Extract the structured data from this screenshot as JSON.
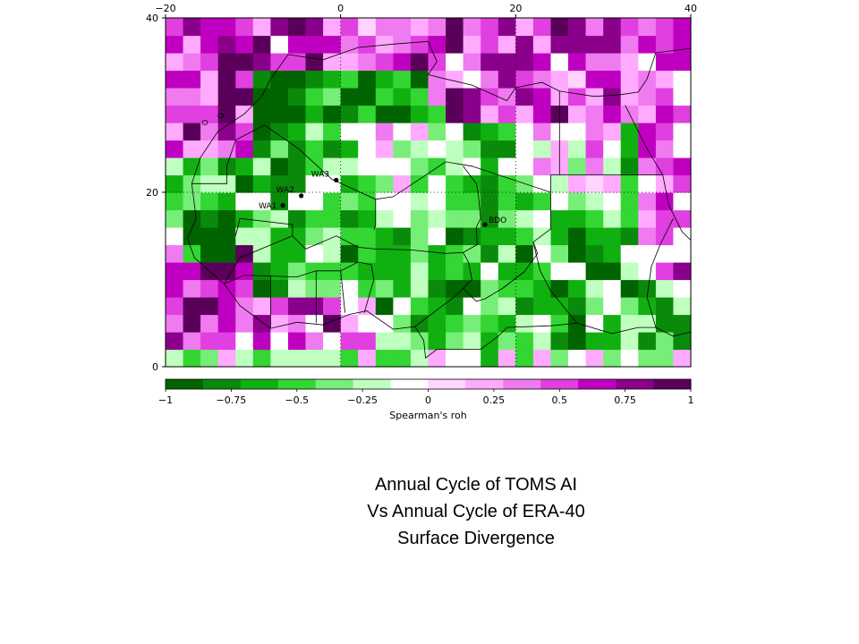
{
  "map": {
    "lon_ticks": [
      "−20",
      "0",
      "20",
      "40"
    ],
    "lat_ticks": [
      "0",
      "20",
      "40"
    ],
    "stations": [
      {
        "label": "WA1",
        "lon": -6.6,
        "lat": 18.5
      },
      {
        "label": "WA2",
        "lon": -4.5,
        "lat": 19.6
      },
      {
        "label": "WA3",
        "lon": -0.5,
        "lat": 21.4
      },
      {
        "label": "BDO",
        "lon": 16.5,
        "lat": 16.3
      }
    ],
    "extent": {
      "lon_min": -20,
      "lon_max": 40,
      "lat_min": 0,
      "lat_max": 40
    }
  },
  "colorbar": {
    "title": "Spearman's roh",
    "tick_labels": [
      "−1",
      "−0.75",
      "−0.5",
      "−0.25",
      "0",
      "0.25",
      "0.5",
      "0.75",
      "1"
    ],
    "range": [
      -1,
      1
    ],
    "colors": [
      "#006400",
      "#0a8a0a",
      "#11b011",
      "#33d633",
      "#77ee77",
      "#bfffbf",
      "#ffffff",
      "#ffd5ff",
      "#ffaaff",
      "#f07af0",
      "#e040e0",
      "#c000c0",
      "#8a008a",
      "#5a005a"
    ]
  },
  "caption": {
    "line1": "Annual Cycle of TOMS AI",
    "line2": "Vs Annual Cycle of ERA-40",
    "line3": "Surface Divergence"
  }
}
